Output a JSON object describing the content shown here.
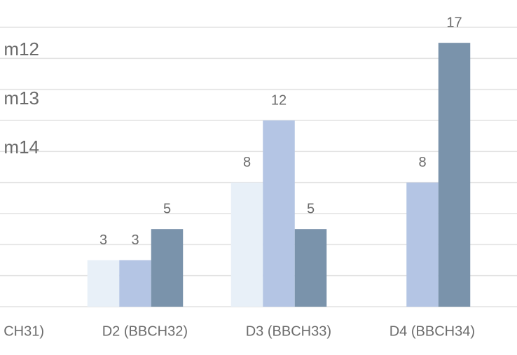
{
  "chart_data": {
    "type": "bar",
    "categories": [
      "CH31)",
      "D2 (BBCH32)",
      "D3 (BBCH33)",
      "D4 (BBCH34)"
    ],
    "series": [
      {
        "name": "m12",
        "color": "#e8f0f8",
        "values": [
          null,
          3,
          8,
          null
        ]
      },
      {
        "name": "m13",
        "color": "#b4c5e4",
        "values": [
          null,
          3,
          12,
          8
        ]
      },
      {
        "name": "m14",
        "color": "#7a93ab",
        "values": [
          null,
          5,
          5,
          17
        ]
      }
    ],
    "ylim": [
      0,
      18
    ],
    "yticks": [
      0,
      2,
      4,
      6,
      8,
      10,
      12,
      14,
      16,
      18
    ],
    "grid": true
  }
}
